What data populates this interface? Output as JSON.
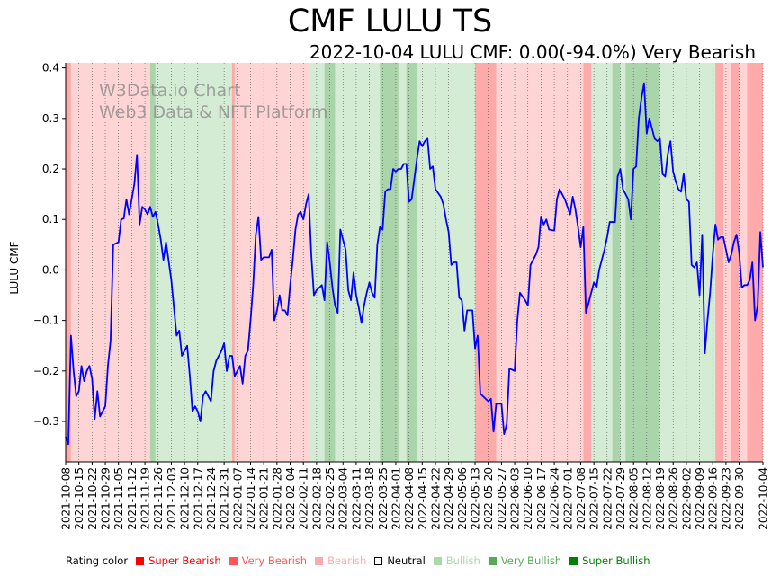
{
  "title": "CMF LULU TS",
  "subtitle": "2022-10-04 LULU CMF: 0.00(-94.0%) Very Bearish",
  "watermark": [
    "W3Data.io Chart",
    "Web3 Data & NFT Platform"
  ],
  "legend": {
    "label": "Rating color",
    "items": [
      {
        "label": "Super Bearish",
        "color": "#ff0000"
      },
      {
        "label": "Very Bearish",
        "color": "#ff5555"
      },
      {
        "label": "Bearish",
        "color": "#ffaaaa"
      },
      {
        "label": "Neutral",
        "color": "#ffffff"
      },
      {
        "label": "Bullish",
        "color": "#a9d9a9"
      },
      {
        "label": "Very Bullish",
        "color": "#55aa55"
      },
      {
        "label": "Super Bullish",
        "color": "#008000"
      }
    ]
  },
  "chart_data": {
    "type": "line",
    "title": "CMF LULU TS",
    "ylabel": "LULU CMF",
    "xlabel": "",
    "xlim": [
      "2021-10-08",
      "2022-10-04"
    ],
    "ylim": [
      -0.38,
      0.41
    ],
    "yticks": [
      -0.3,
      -0.2,
      -0.1,
      0.0,
      0.1,
      0.2,
      0.3,
      0.4
    ],
    "ytick_labels": [
      "−0.3",
      "−0.2",
      "−0.1",
      "0.0",
      "0.1",
      "0.2",
      "0.3",
      "0.4"
    ],
    "xtick_labels": [
      "2021-10-08",
      "2021-10-15",
      "2021-10-22",
      "2021-10-29",
      "2021-11-05",
      "2021-11-12",
      "2021-11-19",
      "2021-11-26",
      "2021-12-03",
      "2021-12-10",
      "2021-12-17",
      "2021-12-24",
      "2021-12-31",
      "2022-01-07",
      "2022-01-14",
      "2022-01-21",
      "2022-01-28",
      "2022-02-04",
      "2022-02-11",
      "2022-02-18",
      "2022-02-25",
      "2022-03-04",
      "2022-03-11",
      "2022-03-18",
      "2022-03-25",
      "2022-04-01",
      "2022-04-08",
      "2022-04-15",
      "2022-04-22",
      "2022-04-29",
      "2022-05-06",
      "2022-05-13",
      "2022-05-20",
      "2022-05-27",
      "2022-06-03",
      "2022-06-10",
      "2022-06-17",
      "2022-06-24",
      "2022-07-01",
      "2022-07-08",
      "2022-07-15",
      "2022-07-22",
      "2022-07-29",
      "2022-08-05",
      "2022-08-12",
      "2022-08-19",
      "2022-08-26",
      "2022-09-02",
      "2022-09-09",
      "2022-09-16",
      "2022-09-23",
      "2022-09-30",
      "2022-10-04"
    ],
    "series": [
      {
        "name": "LULU CMF",
        "color": "#0000ff",
        "points": [
          [
            0,
            -0.33
          ],
          [
            1,
            -0.345
          ],
          [
            2,
            -0.13
          ],
          [
            3,
            -0.2
          ],
          [
            4,
            -0.25
          ],
          [
            5,
            -0.24
          ],
          [
            6,
            -0.19
          ],
          [
            7,
            -0.22
          ],
          [
            8,
            -0.2
          ],
          [
            9,
            -0.19
          ],
          [
            10,
            -0.215
          ],
          [
            11,
            -0.295
          ],
          [
            12,
            -0.24
          ],
          [
            13,
            -0.29
          ],
          [
            15,
            -0.27
          ],
          [
            16,
            -0.19
          ],
          [
            17,
            -0.14
          ],
          [
            18,
            0.05
          ],
          [
            20,
            0.055
          ],
          [
            21,
            0.1
          ],
          [
            22,
            0.102
          ],
          [
            23,
            0.14
          ],
          [
            24,
            0.11
          ],
          [
            25,
            0.14
          ],
          [
            26,
            0.17
          ],
          [
            27,
            0.228
          ],
          [
            28,
            0.09
          ],
          [
            29,
            0.125
          ],
          [
            30,
            0.12
          ],
          [
            31,
            0.11
          ],
          [
            32,
            0.125
          ],
          [
            33,
            0.105
          ],
          [
            34,
            0.115
          ],
          [
            35,
            0.09
          ],
          [
            36,
            0.06
          ],
          [
            37,
            0.02
          ],
          [
            38,
            0.055
          ],
          [
            40,
            -0.02
          ],
          [
            42,
            -0.13
          ],
          [
            43,
            -0.12
          ],
          [
            44,
            -0.17
          ],
          [
            46,
            -0.15
          ],
          [
            47,
            -0.21
          ],
          [
            48,
            -0.28
          ],
          [
            49,
            -0.27
          ],
          [
            50,
            -0.28
          ],
          [
            51,
            -0.3
          ],
          [
            52,
            -0.25
          ],
          [
            53,
            -0.24
          ],
          [
            55,
            -0.26
          ],
          [
            56,
            -0.2
          ],
          [
            57,
            -0.18
          ],
          [
            59,
            -0.16
          ],
          [
            60,
            -0.145
          ],
          [
            61,
            -0.2
          ],
          [
            62,
            -0.17
          ],
          [
            63,
            -0.17
          ],
          [
            64,
            -0.21
          ],
          [
            66,
            -0.19
          ],
          [
            67,
            -0.225
          ],
          [
            68,
            -0.17
          ],
          [
            69,
            -0.16
          ],
          [
            70,
            -0.1
          ],
          [
            71,
            -0.03
          ],
          [
            72,
            0.07
          ],
          [
            73,
            0.105
          ],
          [
            74,
            0.02
          ],
          [
            75,
            0.025
          ],
          [
            77,
            0.025
          ],
          [
            78,
            0.04
          ],
          [
            79,
            -0.1
          ],
          [
            80,
            -0.08
          ],
          [
            81,
            -0.05
          ],
          [
            82,
            -0.08
          ],
          [
            83,
            -0.08
          ],
          [
            84,
            -0.09
          ],
          [
            85,
            -0.03
          ],
          [
            86,
            0.02
          ],
          [
            87,
            0.08
          ],
          [
            88,
            0.11
          ],
          [
            89,
            0.115
          ],
          [
            90,
            0.1
          ],
          [
            91,
            0.13
          ],
          [
            92,
            0.15
          ],
          [
            93,
            0.03
          ],
          [
            94,
            -0.05
          ],
          [
            95,
            -0.04
          ],
          [
            96,
            -0.035
          ],
          [
            97,
            -0.03
          ],
          [
            98,
            -0.06
          ],
          [
            99,
            0.055
          ],
          [
            100,
            0.015
          ],
          [
            101,
            -0.035
          ],
          [
            102,
            -0.07
          ],
          [
            103,
            -0.085
          ],
          [
            104,
            0.08
          ],
          [
            105,
            0.06
          ],
          [
            106,
            0.04
          ],
          [
            107,
            -0.04
          ],
          [
            108,
            -0.06
          ],
          [
            109,
            -0.005
          ],
          [
            110,
            -0.05
          ],
          [
            111,
            -0.075
          ],
          [
            112,
            -0.105
          ],
          [
            113,
            -0.07
          ],
          [
            114,
            -0.045
          ],
          [
            115,
            -0.025
          ],
          [
            116,
            -0.045
          ],
          [
            117,
            -0.055
          ],
          [
            118,
            0.05
          ],
          [
            119,
            0.085
          ],
          [
            120,
            0.08
          ],
          [
            121,
            0.155
          ],
          [
            122,
            0.16
          ],
          [
            123,
            0.16
          ],
          [
            124,
            0.2
          ],
          [
            125,
            0.195
          ],
          [
            126,
            0.2
          ],
          [
            127,
            0.2
          ],
          [
            128,
            0.21
          ],
          [
            129,
            0.21
          ],
          [
            130,
            0.135
          ],
          [
            131,
            0.14
          ],
          [
            132,
            0.18
          ],
          [
            133,
            0.22
          ],
          [
            134,
            0.255
          ],
          [
            135,
            0.245
          ],
          [
            136,
            0.255
          ],
          [
            137,
            0.26
          ],
          [
            138,
            0.2
          ],
          [
            139,
            0.205
          ],
          [
            140,
            0.16
          ],
          [
            142,
            0.145
          ],
          [
            143,
            0.13
          ],
          [
            144,
            0.1
          ],
          [
            145,
            0.075
          ],
          [
            146,
            0.01
          ],
          [
            147,
            0.015
          ],
          [
            148,
            0.015
          ],
          [
            149,
            -0.055
          ],
          [
            150,
            -0.06
          ],
          [
            151,
            -0.12
          ],
          [
            152,
            -0.08
          ],
          [
            154,
            -0.08
          ],
          [
            155,
            -0.155
          ],
          [
            156,
            -0.13
          ],
          [
            157,
            -0.245
          ],
          [
            159,
            -0.255
          ],
          [
            160,
            -0.26
          ],
          [
            161,
            -0.255
          ],
          [
            162,
            -0.32
          ],
          [
            163,
            -0.265
          ],
          [
            165,
            -0.265
          ],
          [
            166,
            -0.325
          ],
          [
            167,
            -0.305
          ],
          [
            168,
            -0.195
          ],
          [
            170,
            -0.2
          ],
          [
            171,
            -0.1
          ],
          [
            172,
            -0.045
          ],
          [
            174,
            -0.06
          ],
          [
            175,
            -0.07
          ],
          [
            176,
            0.01
          ],
          [
            177,
            0.02
          ],
          [
            178,
            0.03
          ],
          [
            179,
            0.045
          ],
          [
            180,
            0.106
          ],
          [
            181,
            0.09
          ],
          [
            182,
            0.1
          ],
          [
            183,
            0.08
          ],
          [
            185,
            0.078
          ],
          [
            186,
            0.14
          ],
          [
            187,
            0.16
          ],
          [
            188,
            0.15
          ],
          [
            189,
            0.14
          ],
          [
            190,
            0.125
          ],
          [
            191,
            0.11
          ],
          [
            192,
            0.145
          ],
          [
            193,
            0.12
          ],
          [
            194,
            0.085
          ],
          [
            195,
            0.045
          ],
          [
            196,
            0.085
          ],
          [
            197,
            -0.085
          ],
          [
            198,
            -0.065
          ],
          [
            199,
            -0.045
          ],
          [
            200,
            -0.025
          ],
          [
            201,
            -0.035
          ],
          [
            202,
            0.0
          ],
          [
            203,
            0.02
          ],
          [
            204,
            0.04
          ],
          [
            205,
            0.065
          ],
          [
            206,
            0.095
          ],
          [
            208,
            0.095
          ],
          [
            209,
            0.185
          ],
          [
            210,
            0.2
          ],
          [
            211,
            0.16
          ],
          [
            212,
            0.15
          ],
          [
            213,
            0.14
          ],
          [
            214,
            0.1
          ],
          [
            215,
            0.2
          ],
          [
            216,
            0.205
          ],
          [
            217,
            0.3
          ],
          [
            218,
            0.34
          ],
          [
            219,
            0.37
          ],
          [
            220,
            0.27
          ],
          [
            221,
            0.3
          ],
          [
            222,
            0.28
          ],
          [
            223,
            0.26
          ],
          [
            224,
            0.255
          ],
          [
            225,
            0.26
          ],
          [
            226,
            0.19
          ],
          [
            227,
            0.185
          ],
          [
            228,
            0.23
          ],
          [
            229,
            0.255
          ],
          [
            230,
            0.195
          ],
          [
            231,
            0.175
          ],
          [
            232,
            0.16
          ],
          [
            233,
            0.155
          ],
          [
            234,
            0.19
          ],
          [
            235,
            0.14
          ],
          [
            236,
            0.135
          ],
          [
            237,
            0.01
          ],
          [
            238,
            0.005
          ],
          [
            239,
            0.015
          ],
          [
            240,
            -0.05
          ],
          [
            241,
            0.07
          ],
          [
            242,
            -0.165
          ],
          [
            243,
            -0.1
          ],
          [
            244,
            -0.045
          ],
          [
            245,
            0.03
          ],
          [
            246,
            0.09
          ],
          [
            247,
            0.06
          ],
          [
            248,
            0.065
          ],
          [
            249,
            0.065
          ],
          [
            250,
            0.04
          ],
          [
            251,
            0.015
          ],
          [
            252,
            0.03
          ],
          [
            253,
            0.055
          ],
          [
            254,
            0.07
          ],
          [
            255,
            0.035
          ],
          [
            256,
            -0.035
          ],
          [
            257,
            -0.03
          ],
          [
            258,
            -0.03
          ],
          [
            259,
            -0.02
          ],
          [
            260,
            0.015
          ],
          [
            261,
            -0.1
          ],
          [
            262,
            -0.07
          ],
          [
            263,
            0.075
          ],
          [
            264,
            0.005
          ]
        ]
      }
    ],
    "rating_bands": [
      {
        "from": 0,
        "to": 2,
        "rating": "Very Bearish"
      },
      {
        "from": 2,
        "to": 32,
        "rating": "Bearish"
      },
      {
        "from": 32,
        "to": 34,
        "rating": "Very Bullish"
      },
      {
        "from": 34,
        "to": 37,
        "rating": "Bullish"
      },
      {
        "from": 37,
        "to": 63,
        "rating": "Bullish"
      },
      {
        "from": 63,
        "to": 64,
        "rating": "Very Bearish"
      },
      {
        "from": 64,
        "to": 92,
        "rating": "Bearish"
      },
      {
        "from": 92,
        "to": 98,
        "rating": "Bullish"
      },
      {
        "from": 98,
        "to": 102,
        "rating": "Very Bullish"
      },
      {
        "from": 102,
        "to": 119,
        "rating": "Bullish"
      },
      {
        "from": 119,
        "to": 126,
        "rating": "Very Bullish"
      },
      {
        "from": 126,
        "to": 129,
        "rating": "Bullish"
      },
      {
        "from": 129,
        "to": 133,
        "rating": "Very Bullish"
      },
      {
        "from": 133,
        "to": 155,
        "rating": "Bullish"
      },
      {
        "from": 155,
        "to": 163,
        "rating": "Very Bearish"
      },
      {
        "from": 163,
        "to": 169,
        "rating": "Bearish"
      },
      {
        "from": 169,
        "to": 196,
        "rating": "Bearish"
      },
      {
        "from": 196,
        "to": 199,
        "rating": "Very Bearish"
      },
      {
        "from": 199,
        "to": 207,
        "rating": "Bullish"
      },
      {
        "from": 207,
        "to": 210,
        "rating": "Very Bullish"
      },
      {
        "from": 210,
        "to": 212,
        "rating": "Bullish"
      },
      {
        "from": 212,
        "to": 225,
        "rating": "Very Bullish"
      },
      {
        "from": 225,
        "to": 246,
        "rating": "Bullish"
      },
      {
        "from": 246,
        "to": 249,
        "rating": "Very Bearish"
      },
      {
        "from": 249,
        "to": 252,
        "rating": "Bearish"
      },
      {
        "from": 252,
        "to": 255,
        "rating": "Very Bearish"
      },
      {
        "from": 255,
        "to": 258,
        "rating": "Bearish"
      },
      {
        "from": 258,
        "to": 264,
        "rating": "Very Bearish"
      }
    ],
    "x_total": 264
  }
}
